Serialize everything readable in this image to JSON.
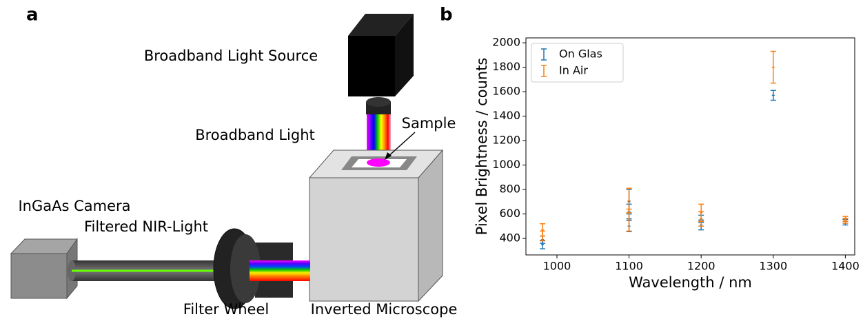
{
  "panels": {
    "a": "a",
    "b": "b"
  },
  "diagram": {
    "labels": {
      "light_source": "Broadband Light Source",
      "light": "Broadband Light",
      "sample": "Sample",
      "camera": "InGaAs Camera",
      "nir": "Filtered NIR-Light",
      "filter_wheel": "Filter Wheel",
      "microscope": "Inverted Microscope"
    }
  },
  "chart_data": {
    "type": "errorbar",
    "x_label": "Wavelength / nm",
    "y_label": "Pixel Brightness / counts",
    "xlim": [
      957,
      1413
    ],
    "ylim": [
      265,
      2040
    ],
    "xticks": [
      1000,
      1100,
      1200,
      1300,
      1400
    ],
    "yticks": [
      400,
      600,
      800,
      1000,
      1200,
      1400,
      1600,
      1800,
      2000
    ],
    "legend": "upper left",
    "grid": false,
    "series": [
      {
        "name": "On Glas",
        "color": "#1f77b4",
        "x": [
          980,
          980,
          1100,
          1100,
          1100,
          1200,
          1200,
          1300,
          1400,
          1400
        ],
        "values": [
          350,
          390,
          500,
          620,
          700,
          510,
          560,
          1570,
          525,
          540
        ],
        "errors": [
          35,
          30,
          45,
          60,
          100,
          40,
          30,
          40,
          15,
          15
        ]
      },
      {
        "name": "In Air",
        "color": "#ff7f0e",
        "x": [
          980,
          980,
          1100,
          1100,
          1200,
          1200,
          1300,
          1400,
          1400
        ],
        "values": [
          420,
          470,
          550,
          710,
          560,
          610,
          1800,
          545,
          560
        ],
        "errors": [
          40,
          50,
          90,
          100,
          60,
          70,
          130,
          20,
          20
        ]
      }
    ]
  }
}
